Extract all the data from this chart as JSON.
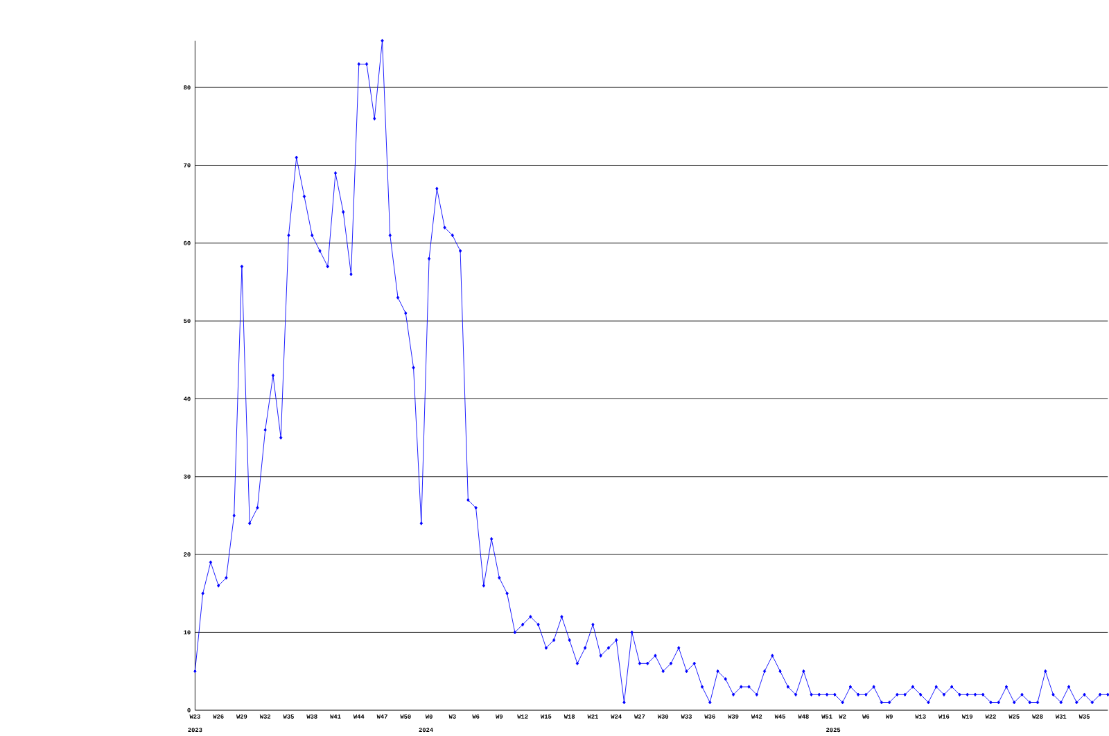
{
  "chart_data": {
    "type": "line",
    "categories": [
      "W23",
      null,
      null,
      "W26",
      null,
      null,
      "W29",
      null,
      null,
      "W32",
      null,
      null,
      "W35",
      null,
      null,
      "W38",
      null,
      null,
      "W41",
      null,
      null,
      "W44",
      null,
      null,
      "W47",
      null,
      null,
      "W50",
      null,
      null,
      "W0",
      null,
      null,
      "W3",
      null,
      null,
      "W6",
      null,
      null,
      "W9",
      null,
      null,
      "W12",
      null,
      null,
      "W15",
      null,
      null,
      "W18",
      null,
      null,
      "W21",
      null,
      null,
      "W24",
      null,
      null,
      "W27",
      null,
      null,
      "W30",
      null,
      null,
      "W33",
      null,
      null,
      "W36",
      null,
      null,
      "W39",
      null,
      null,
      "W42",
      null,
      null,
      "W45",
      null,
      null,
      "W48",
      null,
      null,
      "W51",
      null,
      "W2",
      null,
      null,
      "W6",
      null,
      null,
      "W9",
      null,
      null,
      null,
      "W13",
      null,
      null,
      "W16",
      null,
      null,
      "W19",
      null,
      null,
      "W22",
      null,
      null,
      "W25",
      null,
      null,
      "W28",
      null,
      null,
      "W31",
      null,
      null,
      "W35",
      null,
      null,
      null
    ],
    "values": [
      5,
      15,
      19,
      16,
      17,
      25,
      57,
      24,
      26,
      36,
      43,
      35,
      61,
      71,
      66,
      61,
      59,
      57,
      69,
      64,
      56,
      83,
      83,
      76,
      86,
      61,
      53,
      51,
      44,
      24,
      58,
      67,
      62,
      61,
      59,
      27,
      26,
      16,
      22,
      17,
      15,
      10,
      11,
      12,
      11,
      8,
      9,
      12,
      9,
      6,
      8,
      11,
      7,
      8,
      9,
      1,
      10,
      6,
      6,
      7,
      5,
      6,
      8,
      5,
      6,
      3,
      1,
      5,
      4,
      2,
      3,
      3,
      2,
      5,
      7,
      5,
      3,
      2,
      5,
      2,
      2,
      2,
      2,
      1,
      3,
      2,
      2,
      3,
      1,
      1,
      2,
      2,
      3,
      2,
      1,
      3,
      2,
      3,
      2,
      2,
      2,
      2,
      1,
      1,
      3,
      1,
      2,
      1,
      1,
      5,
      2,
      1,
      3,
      1,
      2,
      1,
      2,
      2
    ],
    "color": "#0000ff",
    "marker": "diamond",
    "line_style": "solid",
    "grid": "y",
    "ylim": [
      0,
      86
    ],
    "yticks": [
      0,
      10,
      20,
      30,
      40,
      50,
      60,
      70,
      80
    ],
    "annotations": [
      "2023",
      "2024",
      "2025"
    ]
  }
}
